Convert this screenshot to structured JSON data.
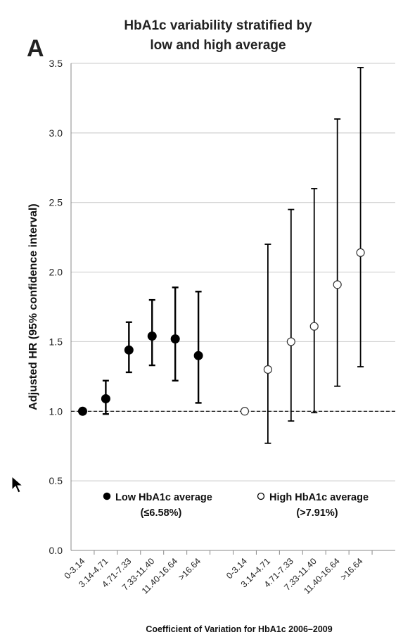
{
  "chart_data": {
    "type": "scatter",
    "panel_letter": "A",
    "title_lines": [
      "HbA1c variability stratified by",
      "low and high average"
    ],
    "xlabel": "Coefficient of Variation for HbA1c 2006–2009",
    "ylabel": "Adjusted HR (95% confidence interval)",
    "ylim": [
      0.0,
      3.5
    ],
    "yticks": [
      "0.0",
      "0.5",
      "1.0",
      "1.5",
      "2.0",
      "2.5",
      "3.0",
      "3.5"
    ],
    "grid": true,
    "reference_line": 1.0,
    "categories": [
      "0-3.14",
      "3.14-4.71",
      "4.71-7.33",
      "7.33-11.40",
      "11.40-16.64",
      ">16.64",
      "0-3.14",
      "3.14-4.71",
      "4.71-7.33",
      "7.33-11.40",
      "11.40-16.64",
      ">16.64"
    ],
    "series": [
      {
        "legend_label": "Low HbA1c average",
        "legend_sub": "(≤6.58%)",
        "marker": "filled",
        "color": "#000000",
        "positions": [
          1,
          2,
          3,
          4,
          5,
          6
        ],
        "values": [
          1.0,
          1.09,
          1.44,
          1.54,
          1.52,
          1.4
        ],
        "lower": [
          1.0,
          0.98,
          1.28,
          1.33,
          1.22,
          1.06
        ],
        "upper": [
          1.0,
          1.22,
          1.64,
          1.8,
          1.89,
          1.86
        ]
      },
      {
        "legend_label": "High HbA1c average",
        "legend_sub": "(>7.91%)",
        "marker": "open",
        "color": "#ffffff",
        "positions": [
          8,
          9,
          10,
          11,
          12,
          13
        ],
        "values": [
          1.0,
          1.3,
          1.5,
          1.61,
          1.91,
          2.14
        ],
        "lower": [
          1.0,
          0.77,
          0.93,
          0.99,
          1.18,
          1.32
        ],
        "upper": [
          1.0,
          2.2,
          2.45,
          2.6,
          3.1,
          3.47
        ]
      }
    ]
  }
}
